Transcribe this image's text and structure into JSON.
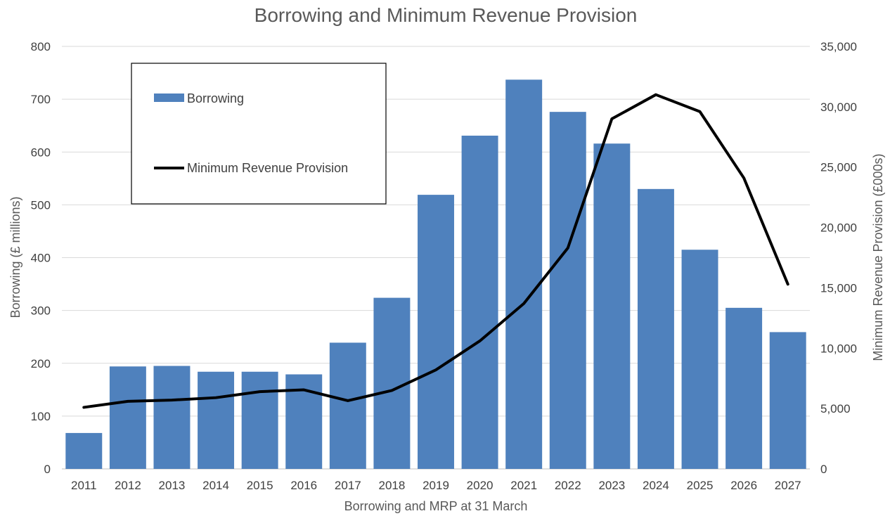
{
  "chart_data": {
    "type": "bar",
    "title": "Borrowing and Minimum Revenue Provision",
    "xlabel": "Borrowing and MRP at 31 March",
    "ylabel_left": "Borrowing (£ millions)",
    "ylabel_right": "Minimum Revenue Provision (£000s)",
    "categories": [
      "2011",
      "2012",
      "2013",
      "2014",
      "2015",
      "2016",
      "2017",
      "2018",
      "2019",
      "2020",
      "2021",
      "2022",
      "2023",
      "2024",
      "2025",
      "2026",
      "2027"
    ],
    "series": [
      {
        "name": "Borrowing",
        "type": "bar",
        "axis": "left",
        "color": "#4f81bd",
        "values": [
          68,
          194,
          195,
          184,
          184,
          179,
          239,
          324,
          519,
          631,
          737,
          676,
          616,
          530,
          415,
          305,
          259
        ]
      },
      {
        "name": "Minimum Revenue Provision",
        "type": "line",
        "axis": "right",
        "color": "#000000",
        "values": [
          5100,
          5600,
          5700,
          5900,
          6400,
          6550,
          5650,
          6500,
          8200,
          10600,
          13700,
          18300,
          29000,
          31000,
          29600,
          24100,
          15300
        ]
      }
    ],
    "ylim_left": [
      0,
      800
    ],
    "ylim_right": [
      0,
      35000
    ],
    "yticks_left": [
      "0",
      "100",
      "200",
      "300",
      "400",
      "500",
      "600",
      "700",
      "800"
    ],
    "yticks_right": [
      "0",
      "5,000",
      "10,000",
      "15,000",
      "20,000",
      "25,000",
      "30,000",
      "35,000"
    ],
    "grid": true,
    "legend_position": "top-left"
  }
}
